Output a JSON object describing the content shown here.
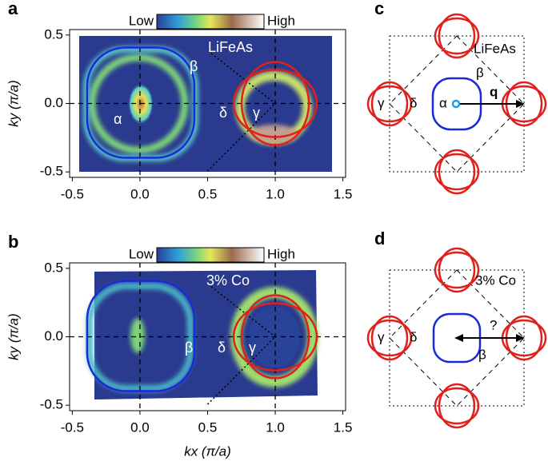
{
  "chart_data": [
    {
      "type": "heatmap",
      "label": "a",
      "colorbar_labels": [
        "Low",
        "High"
      ],
      "y_label": "ky (π/a)",
      "xlim": [
        -0.52,
        1.52
      ],
      "ylim": [
        -0.54,
        0.54
      ],
      "xticks": [
        -0.5,
        {
          "value": 0,
          "label": "0.0"
        },
        0.5,
        {
          "value": 1,
          "label": "1.0"
        },
        1.5
      ],
      "yticks": [
        -0.5,
        {
          "value": 0,
          "label": "0.0"
        },
        0.5
      ],
      "annotations": [
        "LiFeAs",
        "α",
        "β",
        "δ",
        "γ"
      ]
    },
    {
      "type": "heatmap",
      "label": "b",
      "colorbar_labels": [
        "Low",
        "High"
      ],
      "x_label": "kx (π/a)",
      "y_label": "ky (π/a)",
      "xlim": [
        -0.52,
        1.52
      ],
      "ylim": [
        -0.54,
        0.54
      ],
      "xticks": [
        -0.5,
        {
          "value": 0,
          "label": "0.0"
        },
        0.5,
        {
          "value": 1,
          "label": "1.0"
        },
        1.5
      ],
      "yticks": [
        -0.5,
        {
          "value": 0,
          "label": "0.0"
        },
        0.5
      ],
      "annotations": [
        "3% Co",
        "β",
        "δ",
        "γ"
      ]
    }
  ],
  "diagrams": [
    {
      "label": "c",
      "annotations": [
        "LiFeAs",
        "β",
        "γ",
        "δ",
        "α",
        "q"
      ]
    },
    {
      "label": "d",
      "annotations": [
        "3% Co",
        "?",
        "β",
        "γ",
        "δ"
      ]
    }
  ]
}
